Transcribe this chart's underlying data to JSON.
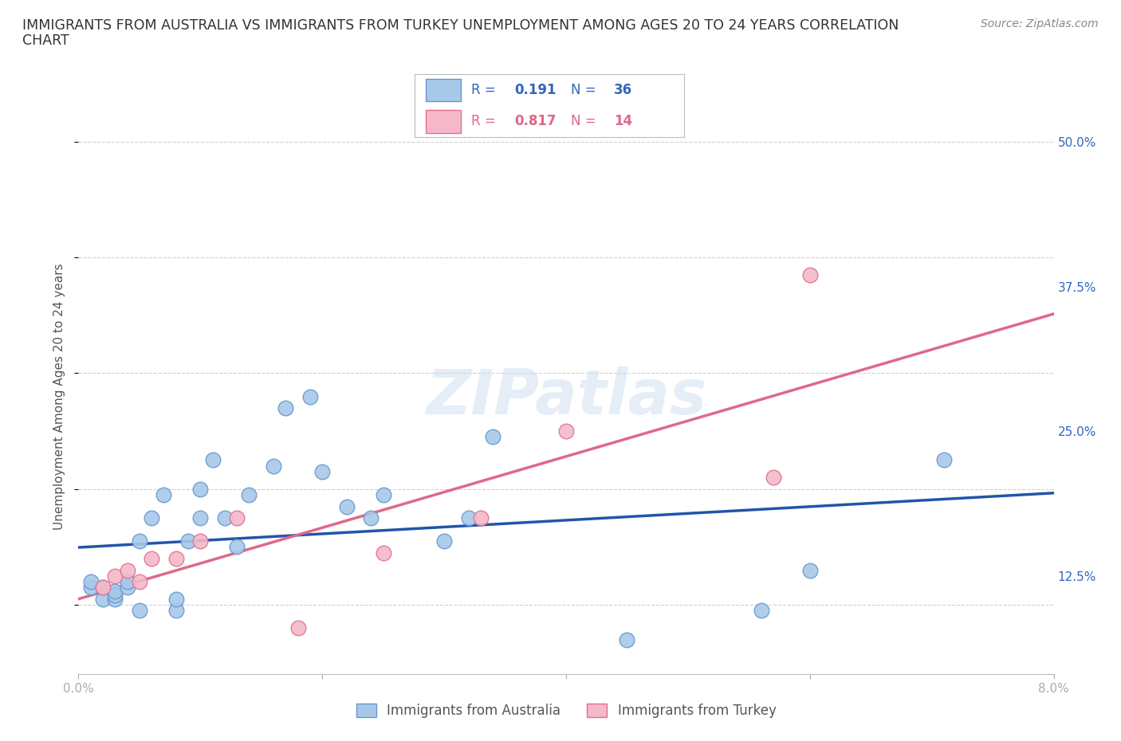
{
  "title_line1": "IMMIGRANTS FROM AUSTRALIA VS IMMIGRANTS FROM TURKEY UNEMPLOYMENT AMONG AGES 20 TO 24 YEARS CORRELATION",
  "title_line2": "CHART",
  "source_text": "Source: ZipAtlas.com",
  "ylabel": "Unemployment Among Ages 20 to 24 years",
  "ytick_labels": [
    "12.5%",
    "25.0%",
    "37.5%",
    "50.0%"
  ],
  "ytick_values": [
    0.125,
    0.25,
    0.375,
    0.5
  ],
  "xlim": [
    0.0,
    0.08
  ],
  "ylim": [
    0.04,
    0.52
  ],
  "background_color": "#ffffff",
  "grid_color": "#cccccc",
  "watermark_text": "ZIPatlas",
  "aus_color": "#a8c8ea",
  "aus_edge_color": "#6699cc",
  "tur_color": "#f5b8c8",
  "tur_edge_color": "#e07090",
  "aus_line_color": "#2255aa",
  "tur_line_color": "#e06888",
  "R_aus": 0.191,
  "N_aus": 36,
  "R_tur": 0.817,
  "N_tur": 14,
  "aus_points_x": [
    0.001,
    0.001,
    0.002,
    0.002,
    0.003,
    0.003,
    0.003,
    0.004,
    0.004,
    0.005,
    0.005,
    0.006,
    0.007,
    0.008,
    0.008,
    0.009,
    0.01,
    0.01,
    0.011,
    0.012,
    0.013,
    0.014,
    0.016,
    0.017,
    0.019,
    0.02,
    0.022,
    0.024,
    0.025,
    0.03,
    0.032,
    0.034,
    0.045,
    0.056,
    0.06,
    0.071
  ],
  "aus_points_y": [
    0.115,
    0.12,
    0.105,
    0.115,
    0.105,
    0.108,
    0.112,
    0.115,
    0.12,
    0.095,
    0.155,
    0.175,
    0.195,
    0.095,
    0.105,
    0.155,
    0.175,
    0.2,
    0.225,
    0.175,
    0.15,
    0.195,
    0.22,
    0.27,
    0.28,
    0.215,
    0.185,
    0.175,
    0.195,
    0.155,
    0.175,
    0.245,
    0.07,
    0.095,
    0.13,
    0.225
  ],
  "tur_points_x": [
    0.002,
    0.003,
    0.004,
    0.005,
    0.006,
    0.008,
    0.01,
    0.013,
    0.018,
    0.025,
    0.033,
    0.04,
    0.057,
    0.06
  ],
  "tur_points_y": [
    0.115,
    0.125,
    0.13,
    0.12,
    0.14,
    0.14,
    0.155,
    0.175,
    0.08,
    0.145,
    0.175,
    0.25,
    0.21,
    0.385
  ],
  "legend_aus_label": "Immigrants from Australia",
  "legend_tur_label": "Immigrants from Turkey",
  "title_fontsize": 12.5,
  "source_fontsize": 10,
  "axis_label_fontsize": 11,
  "tick_fontsize": 11,
  "legend_fontsize": 12,
  "corr_fontsize": 12
}
